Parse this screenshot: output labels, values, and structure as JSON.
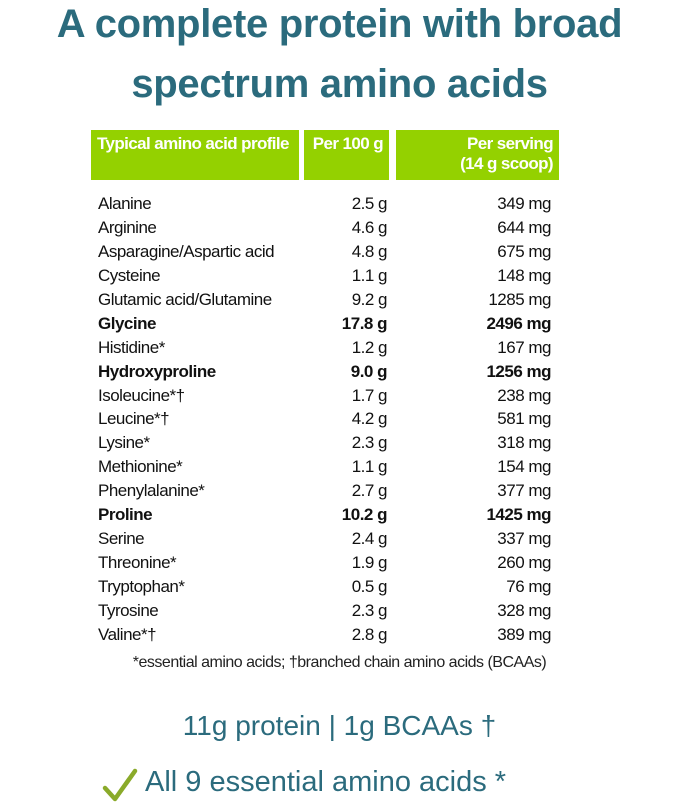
{
  "title": {
    "line1": "A complete protein with broad",
    "line2": "spectrum amino acids"
  },
  "colors": {
    "title": "#2b6b7d",
    "header_bg": "#94d100",
    "check": "#8aaa2a"
  },
  "table": {
    "headers": [
      "Typical amino acid profile",
      "Per 100 g",
      "Per serving",
      "(14 g scoop)"
    ],
    "rows": [
      {
        "name": "Alanine",
        "per100": "2.5 g",
        "serving": "349 mg",
        "bold": false
      },
      {
        "name": "Arginine",
        "per100": "4.6 g",
        "serving": "644 mg",
        "bold": false
      },
      {
        "name": "Asparagine/Aspartic acid",
        "per100": "4.8 g",
        "serving": "675 mg",
        "bold": false
      },
      {
        "name": "Cysteine",
        "per100": "1.1 g",
        "serving": "148 mg",
        "bold": false
      },
      {
        "name": "Glutamic acid/Glutamine",
        "per100": "9.2 g",
        "serving": "1285 mg",
        "bold": false
      },
      {
        "name": "Glycine",
        "per100": "17.8 g",
        "serving": "2496 mg",
        "bold": true
      },
      {
        "name": "Histidine*",
        "per100": "1.2 g",
        "serving": "167 mg",
        "bold": false
      },
      {
        "name": "Hydroxyproline",
        "per100": "9.0 g",
        "serving": "1256 mg",
        "bold": true
      },
      {
        "name": "Isoleucine*†",
        "per100": "1.7 g",
        "serving": "238 mg",
        "bold": false
      },
      {
        "name": "Leucine*†",
        "per100": "4.2 g",
        "serving": "581 mg",
        "bold": false
      },
      {
        "name": "Lysine*",
        "per100": "2.3 g",
        "serving": "318 mg",
        "bold": false
      },
      {
        "name": "Methionine*",
        "per100": "1.1 g",
        "serving": "154 mg",
        "bold": false
      },
      {
        "name": "Phenylalanine*",
        "per100": "2.7 g",
        "serving": "377 mg",
        "bold": false
      },
      {
        "name": "Proline",
        "per100": "10.2 g",
        "serving": "1425 mg",
        "bold": true
      },
      {
        "name": "Serine",
        "per100": "2.4 g",
        "serving": "337 mg",
        "bold": false
      },
      {
        "name": "Threonine*",
        "per100": "1.9 g",
        "serving": "260 mg",
        "bold": false
      },
      {
        "name": "Tryptophan*",
        "per100": "0.5 g",
        "serving": "76 mg",
        "bold": false
      },
      {
        "name": "Tyrosine",
        "per100": "2.3 g",
        "serving": "328 mg",
        "bold": false
      },
      {
        "name": "Valine*†",
        "per100": "2.8 g",
        "serving": "389 mg",
        "bold": false
      }
    ],
    "footnote": "*essential amino acids; †branched chain amino acids (BCAAs)"
  },
  "highlights": {
    "protein": "11g protein | 1g BCAAs †",
    "essential": "All 9 essential amino acids *",
    "check_icon": "checkmark"
  }
}
